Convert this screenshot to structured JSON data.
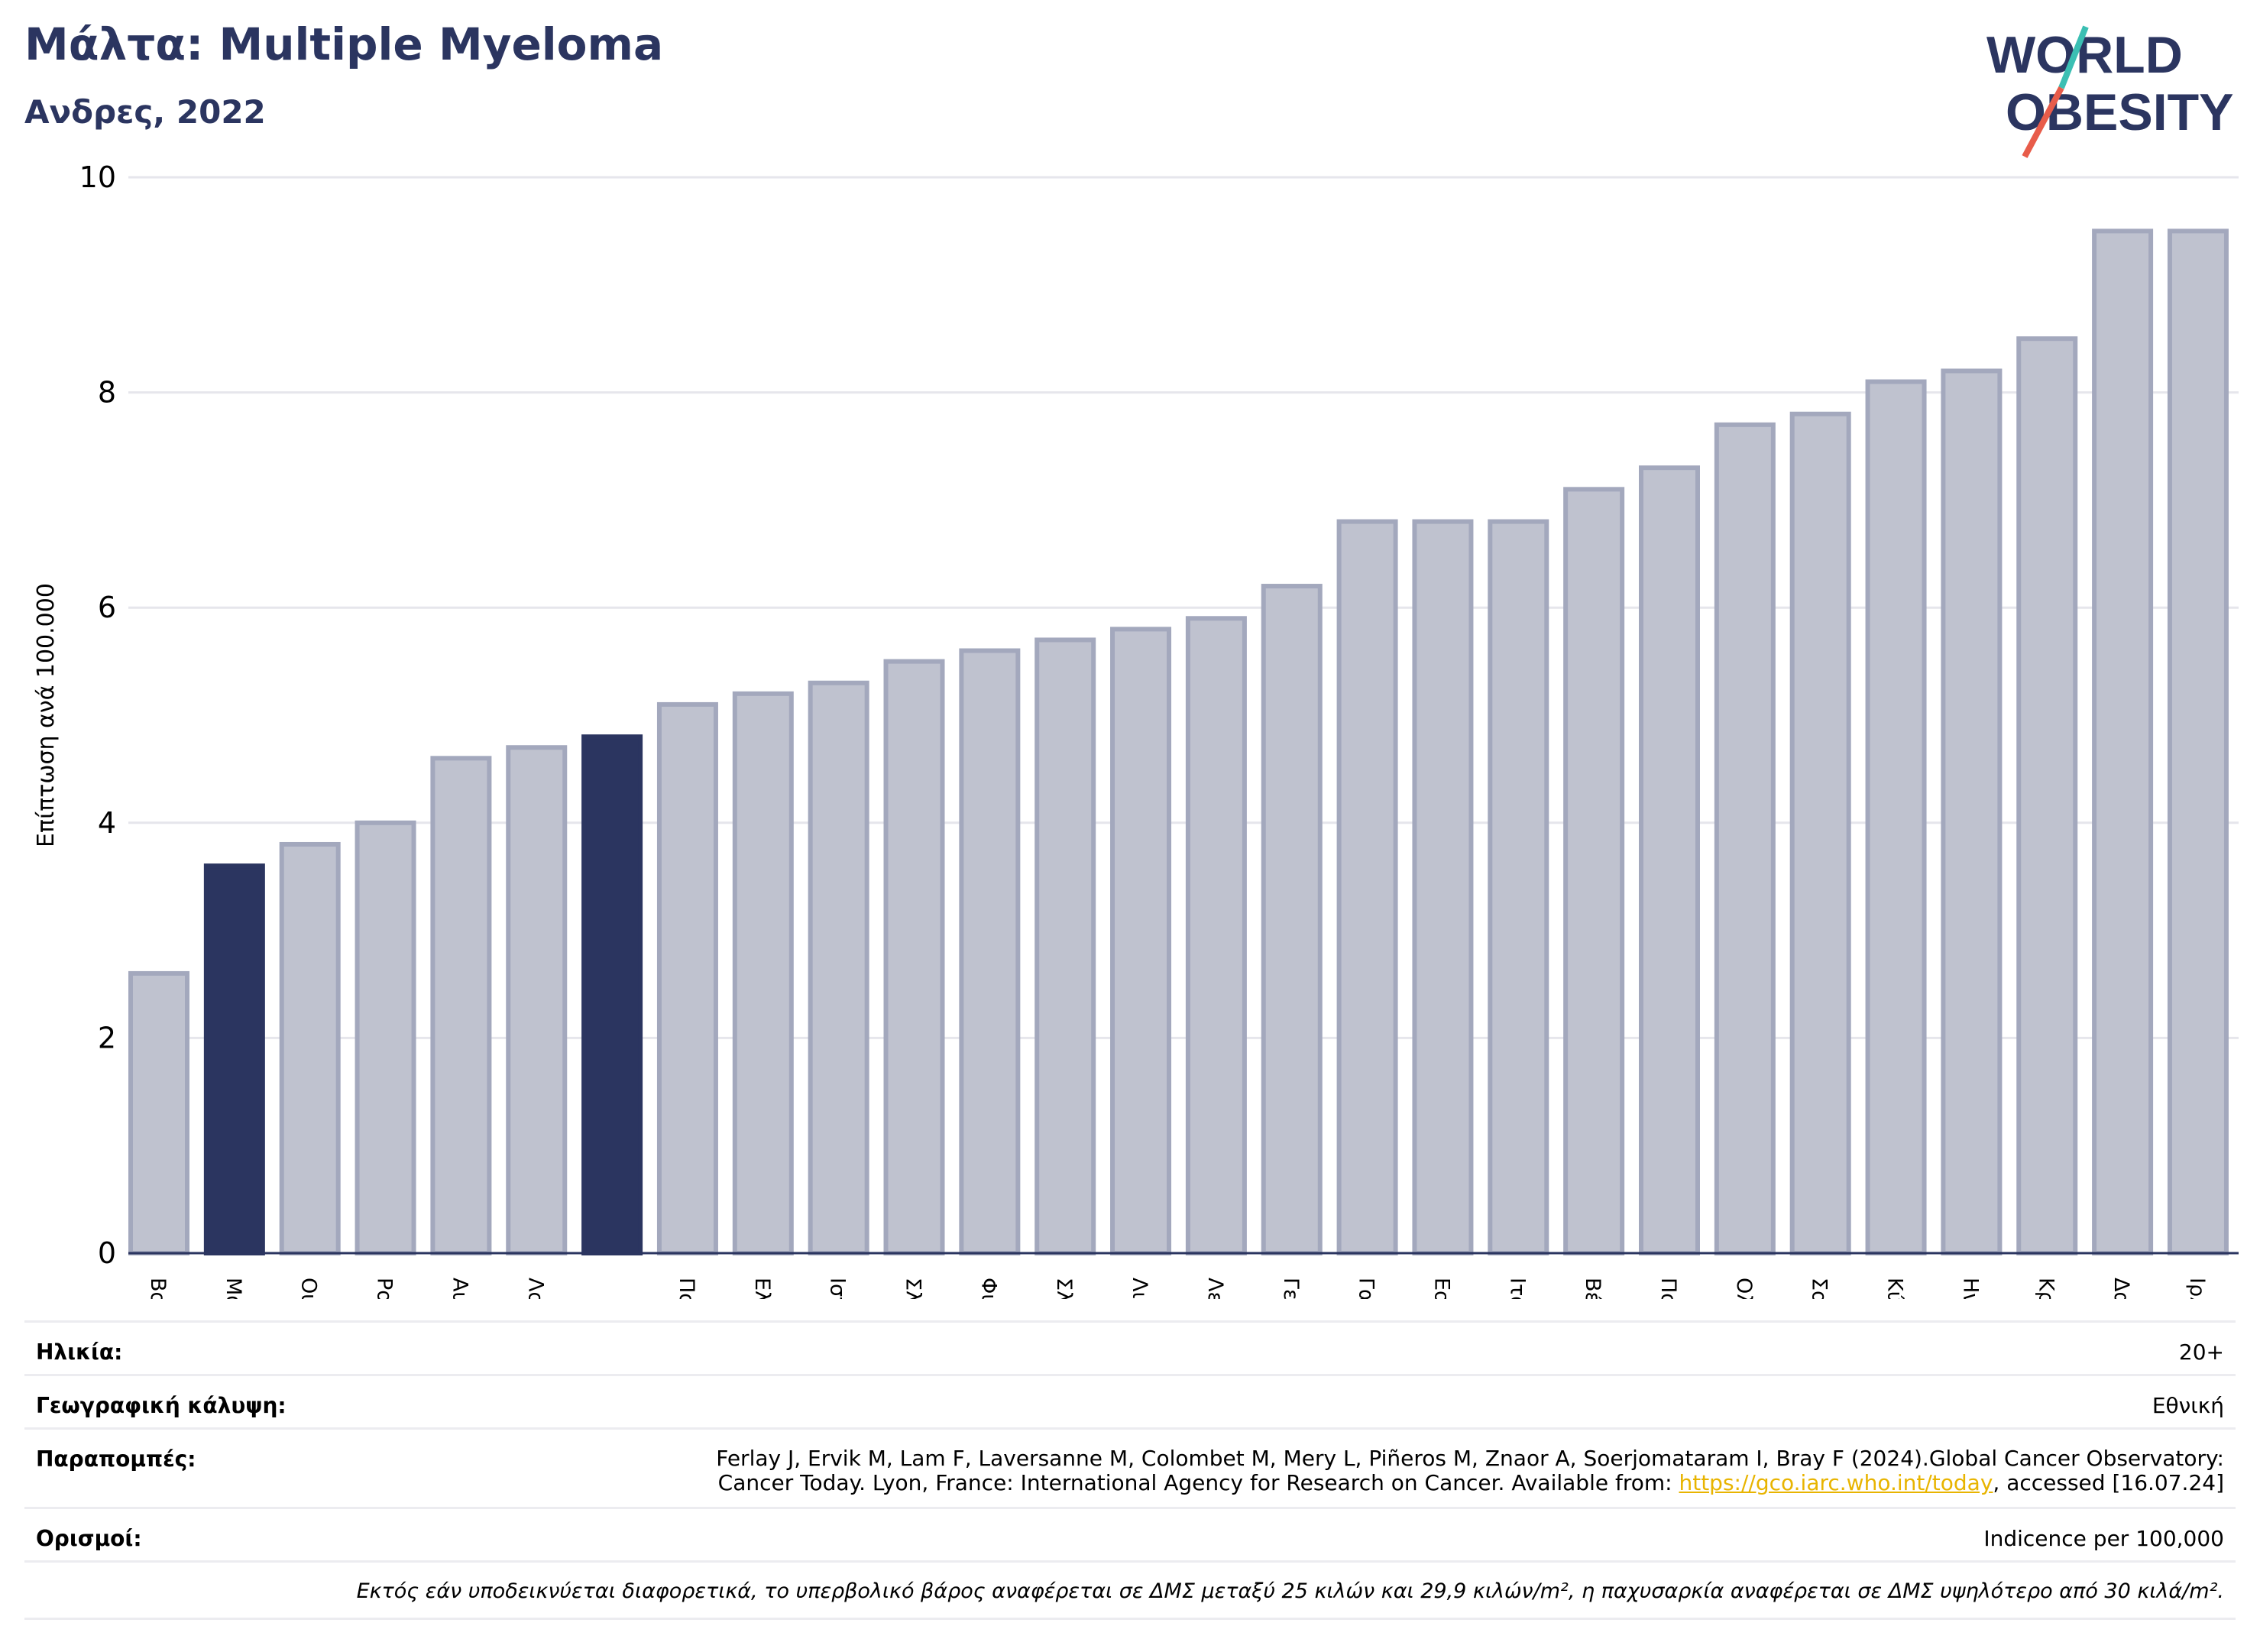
{
  "header": {
    "title": "Μάλτα: Multiple Myeloma",
    "subtitle": "Ανδρες, 2022",
    "logo_line1": "WORLD",
    "logo_line2": "OBESITY"
  },
  "chart_data": {
    "type": "bar",
    "ylabel": "Επίπτωση ανά 100.000",
    "ylim": [
      0,
      10
    ],
    "yticks": [
      "0",
      "2",
      "4",
      "6",
      "8",
      "10"
    ],
    "grid": true,
    "categories": [
      "Βουλγαρία",
      "Μάλτα",
      "Ουγγαρία",
      "Ρουμανία",
      "Αυστρία",
      "Λουξεμβούργο",
      "",
      "Πολωνία",
      "Ελλάδα",
      "Ισπανία",
      "Σλοβακία",
      "Φινλανδία",
      "Σλοβενία",
      "Λιθουανία",
      "Λετονία",
      "Γερμανία",
      "Γαλλία",
      "Εσθονία",
      "Ιταλία",
      "Βέλγιο",
      "Πορτογαλία",
      "Ολλανδία",
      "Σουηδία",
      "Κύπρος",
      "Ηνωμένο Βασίλειο",
      "Κροατία",
      "Δανία",
      "Ιρλανδία"
    ],
    "values": [
      2.6,
      3.6,
      3.8,
      4.0,
      4.6,
      4.7,
      4.8,
      5.1,
      5.2,
      5.3,
      5.5,
      5.6,
      5.7,
      5.8,
      5.9,
      6.2,
      6.8,
      6.8,
      6.8,
      7.1,
      7.3,
      7.7,
      7.8,
      8.1,
      8.2,
      8.5,
      9.5,
      9.5
    ],
    "highlight_indices": [
      1,
      6
    ],
    "colors": {
      "bar": "#bfc2cf",
      "bar_edge": "#a3a8bd",
      "highlight": "#2b3560",
      "grid": "#e6e6ec",
      "axis": "#2b3560"
    }
  },
  "meta": {
    "age_label": "Ηλικία:",
    "age_value": "20+",
    "geo_label": "Γεωγραφική κάλυψη:",
    "geo_value": "Εθνική",
    "refs_label": "Παραπομπές:",
    "refs_line1": "Ferlay J, Ervik M, Lam F, Laversanne M, Colombet M, Mery L, Piñeros M, Znaor A, Soerjomataram I, Bray F (2024).Global Cancer Observatory:",
    "refs_line2_pre": "Cancer Today. Lyon, France: International Agency for Research on Cancer. Available from: ",
    "refs_link": "https://gco.iarc.who.int/today",
    "refs_line2_post": ", accessed [16.07.24]",
    "defs_label": "Ορισμοί:",
    "defs_value": "Indicence per 100,000",
    "footnote": "Εκτός εάν υποδεικνύεται διαφορετικά, το υπερβολικό βάρος αναφέρεται σε ΔΜΣ μεταξύ 25 κιλών και 29,9 κιλών/m², η παχυσαρκία αναφέρεται σε ΔΜΣ υψηλότερο από 30 κιλά/m²."
  }
}
